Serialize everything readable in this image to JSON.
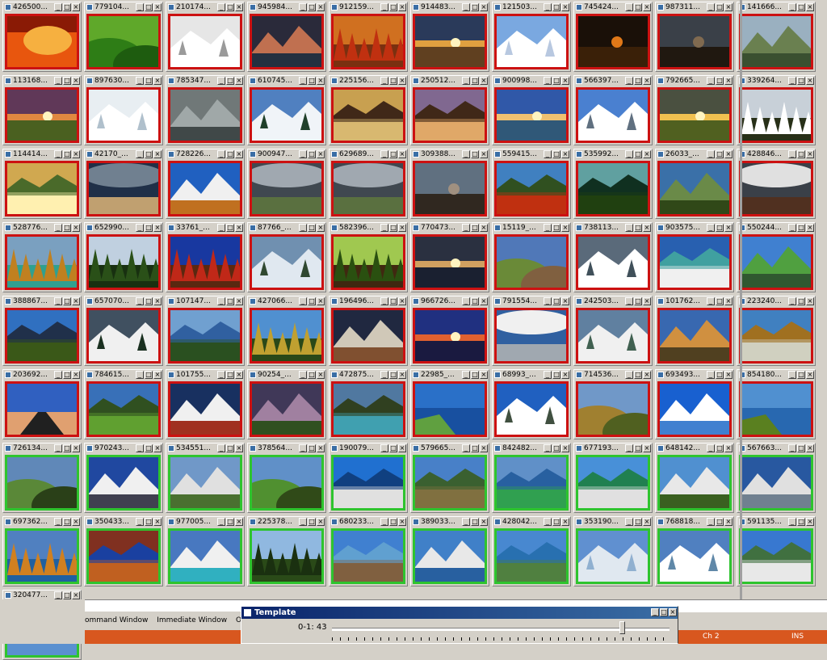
{
  "thumbnails": [
    {
      "title": "426500",
      "selected": false,
      "scene": "fire",
      "colors": [
        "#8a1a05",
        "#e8560e",
        "#f6b040"
      ]
    },
    {
      "title": "779104",
      "selected": false,
      "scene": "hills",
      "colors": [
        "#5fa82a",
        "#2e7d16",
        "#1e5c0f"
      ]
    },
    {
      "title": "210174",
      "selected": false,
      "scene": "snow",
      "colors": [
        "#e6e6e6",
        "#ffffff",
        "#9a9a9a"
      ]
    },
    {
      "title": "945984",
      "selected": false,
      "scene": "mountain",
      "colors": [
        "#2a2a3a",
        "#c07050",
        "#243040"
      ]
    },
    {
      "title": "912159",
      "selected": false,
      "scene": "forest",
      "colors": [
        "#d07020",
        "#c03010",
        "#7a3010"
      ]
    },
    {
      "title": "914483",
      "selected": false,
      "scene": "sunset",
      "colors": [
        "#2a3a5a",
        "#e0a040",
        "#604020"
      ]
    },
    {
      "title": "121503",
      "selected": false,
      "scene": "snow",
      "colors": [
        "#7aa8e0",
        "#ffffff",
        "#b8c8e0"
      ]
    },
    {
      "title": "745424",
      "selected": false,
      "scene": "dark",
      "colors": [
        "#1a1008",
        "#e07818",
        "#3a2008"
      ]
    },
    {
      "title": "987311",
      "selected": false,
      "scene": "dark",
      "colors": [
        "#3a4048",
        "#806a50",
        "#201810"
      ]
    },
    {
      "title": "141666",
      "selected": false,
      "scene": "mountain",
      "colors": [
        "#9ab0c0",
        "#6a8050",
        "#3a5030"
      ]
    },
    {
      "title": "113168",
      "selected": false,
      "scene": "sunset",
      "colors": [
        "#603858",
        "#e08840",
        "#4a6020"
      ]
    },
    {
      "title": "897630",
      "selected": false,
      "scene": "snow",
      "colors": [
        "#e8eef2",
        "#ffffff",
        "#b0c0cc"
      ]
    },
    {
      "title": "785347",
      "selected": false,
      "scene": "mountain",
      "colors": [
        "#707878",
        "#a0a8a8",
        "#404848"
      ]
    },
    {
      "title": "610745",
      "selected": false,
      "scene": "snow",
      "colors": [
        "#5080c0",
        "#f0f4f8",
        "#20402a"
      ]
    },
    {
      "title": "225156",
      "selected": false,
      "scene": "lake",
      "colors": [
        "#c8a050",
        "#d8b870",
        "#402818"
      ]
    },
    {
      "title": "250512",
      "selected": false,
      "scene": "lake",
      "colors": [
        "#806890",
        "#e0a868",
        "#402818"
      ]
    },
    {
      "title": "900998",
      "selected": false,
      "scene": "sunset",
      "colors": [
        "#3058a8",
        "#f0c070",
        "#305878"
      ]
    },
    {
      "title": "566397",
      "selected": false,
      "scene": "snow",
      "colors": [
        "#4a80d0",
        "#ffffff",
        "#607080"
      ]
    },
    {
      "title": "792665",
      "selected": false,
      "scene": "sunset",
      "colors": [
        "#4a5040",
        "#f0c050",
        "#506020"
      ]
    },
    {
      "title": "339264",
      "selected": false,
      "scene": "forest",
      "colors": [
        "#c8d0d8",
        "#ffffff",
        "#283018"
      ]
    },
    {
      "title": "114414",
      "selected": false,
      "scene": "lake",
      "colors": [
        "#d0a850",
        "#fff0b0",
        "#4a6a2a"
      ]
    },
    {
      "title": "42170_",
      "selected": false,
      "scene": "storm",
      "colors": [
        "#203048",
        "#708090",
        "#c0a070"
      ]
    },
    {
      "title": "728226",
      "selected": false,
      "scene": "mountain",
      "colors": [
        "#2060c0",
        "#f0f0f0",
        "#c07020"
      ]
    },
    {
      "title": "900947",
      "selected": false,
      "scene": "storm",
      "colors": [
        "#404850",
        "#a0a8b0",
        "#5a7040"
      ]
    },
    {
      "title": "629689",
      "selected": false,
      "scene": "storm",
      "colors": [
        "#404850",
        "#a0a8b0",
        "#5a7040"
      ]
    },
    {
      "title": "309388",
      "selected": false,
      "scene": "dark",
      "colors": [
        "#607080",
        "#a09080",
        "#302820"
      ]
    },
    {
      "title": "559415",
      "selected": false,
      "scene": "lake",
      "colors": [
        "#4080c0",
        "#c03010",
        "#305020"
      ]
    },
    {
      "title": "535992",
      "selected": false,
      "scene": "lake",
      "colors": [
        "#60a0a0",
        "#204010",
        "#103020"
      ]
    },
    {
      "title": "26033_",
      "selected": false,
      "scene": "mountain",
      "colors": [
        "#3a70a8",
        "#6a8a48",
        "#304818"
      ]
    },
    {
      "title": "428846",
      "selected": false,
      "scene": "storm",
      "colors": [
        "#3a4048",
        "#e0e0e0",
        "#503020"
      ]
    },
    {
      "title": "528776",
      "selected": false,
      "scene": "forest",
      "colors": [
        "#7aa0c0",
        "#c08020",
        "#30a090"
      ]
    },
    {
      "title": "652990",
      "selected": false,
      "scene": "forest",
      "colors": [
        "#c0d0e0",
        "#2a5018",
        "#183010"
      ]
    },
    {
      "title": "33761_",
      "selected": false,
      "scene": "forest",
      "colors": [
        "#1838a0",
        "#c02818",
        "#5a2810"
      ]
    },
    {
      "title": "87766_",
      "selected": false,
      "scene": "snow",
      "colors": [
        "#7090b0",
        "#e0e8f0",
        "#304830"
      ]
    },
    {
      "title": "582396",
      "selected": false,
      "scene": "forest",
      "colors": [
        "#a0c850",
        "#2a5010",
        "#402810"
      ]
    },
    {
      "title": "770473",
      "selected": false,
      "scene": "sunset",
      "colors": [
        "#2a3040",
        "#d0a060",
        "#1a2030"
      ]
    },
    {
      "title": "15119_",
      "selected": false,
      "scene": "hills",
      "colors": [
        "#5078b8",
        "#6a8a38",
        "#806040"
      ]
    },
    {
      "title": "738113",
      "selected": false,
      "scene": "snow",
      "colors": [
        "#5a6a7a",
        "#ffffff",
        "#40505a"
      ]
    },
    {
      "title": "903575",
      "selected": false,
      "scene": "lake",
      "colors": [
        "#2860b0",
        "#f0f0f0",
        "#40a0a0"
      ]
    },
    {
      "title": "550244",
      "selected": false,
      "scene": "mountain",
      "colors": [
        "#4080d0",
        "#50a040",
        "#305830"
      ]
    },
    {
      "title": "388867",
      "selected": false,
      "scene": "lake",
      "colors": [
        "#3070c0",
        "#3a5818",
        "#20304a"
      ]
    },
    {
      "title": "657070",
      "selected": false,
      "scene": "snow",
      "colors": [
        "#405060",
        "#f0f0f0",
        "#1a3020"
      ]
    },
    {
      "title": "107147",
      "selected": false,
      "scene": "lake",
      "colors": [
        "#70a0d0",
        "#2a5020",
        "#3060a0"
      ]
    },
    {
      "title": "427066",
      "selected": false,
      "scene": "forest",
      "colors": [
        "#5090d0",
        "#c0a030",
        "#2a4818"
      ]
    },
    {
      "title": "196496",
      "selected": false,
      "scene": "mountain",
      "colors": [
        "#202840",
        "#d0c8b8",
        "#805030"
      ]
    },
    {
      "title": "966726",
      "selected": false,
      "scene": "sunset",
      "colors": [
        "#203080",
        "#e06030",
        "#1a1a40"
      ]
    },
    {
      "title": "791554",
      "selected": false,
      "scene": "storm",
      "colors": [
        "#3060a0",
        "#f0f0f0",
        "#a0a8b0"
      ]
    },
    {
      "title": "242503",
      "selected": false,
      "scene": "snow",
      "colors": [
        "#6080a0",
        "#f0f0f0",
        "#406050"
      ]
    },
    {
      "title": "101762",
      "selected": false,
      "scene": "mountain",
      "colors": [
        "#3868b0",
        "#d09040",
        "#504020"
      ]
    },
    {
      "title": "223240",
      "selected": false,
      "scene": "lake",
      "colors": [
        "#4080c0",
        "#d0d0c0",
        "#a07020"
      ]
    },
    {
      "title": "203692",
      "selected": false,
      "scene": "road",
      "colors": [
        "#3060c0",
        "#e0a070",
        "#202020"
      ]
    },
    {
      "title": "784615",
      "selected": false,
      "scene": "lake",
      "colors": [
        "#3870b8",
        "#60a030",
        "#305020"
      ]
    },
    {
      "title": "101755",
      "selected": false,
      "scene": "mountain",
      "colors": [
        "#183060",
        "#f0f0f0",
        "#a03020"
      ]
    },
    {
      "title": "90254_",
      "selected": false,
      "scene": "mountain",
      "colors": [
        "#403858",
        "#a080a0",
        "#305020"
      ]
    },
    {
      "title": "472875",
      "selected": false,
      "scene": "lake",
      "colors": [
        "#5078a0",
        "#40a0b0",
        "#304020"
      ]
    },
    {
      "title": "22985_",
      "selected": false,
      "scene": "sea",
      "colors": [
        "#2a70c8",
        "#1850a0",
        "#60a040"
      ]
    },
    {
      "title": "68993_",
      "selected": false,
      "scene": "snow",
      "colors": [
        "#2060c0",
        "#ffffff",
        "#405040"
      ]
    },
    {
      "title": "714536",
      "selected": false,
      "scene": "hills",
      "colors": [
        "#7098c8",
        "#a08030",
        "#506020"
      ]
    },
    {
      "title": "693493",
      "selected": false,
      "scene": "mountain",
      "colors": [
        "#1860d0",
        "#ffffff",
        "#4080d0"
      ]
    },
    {
      "title": "854180",
      "selected": false,
      "scene": "sea",
      "colors": [
        "#5090d0",
        "#2868b0",
        "#5a8020"
      ]
    },
    {
      "title": "726134",
      "selected": true,
      "scene": "hills",
      "colors": [
        "#6088b8",
        "#5a8838",
        "#2a4018"
      ]
    },
    {
      "title": "970243",
      "selected": true,
      "scene": "mountain",
      "colors": [
        "#2048a0",
        "#f0f0f0",
        "#404050"
      ]
    },
    {
      "title": "534551",
      "selected": true,
      "scene": "mountain",
      "colors": [
        "#7098c8",
        "#e0e0e0",
        "#4a7030"
      ]
    },
    {
      "title": "378564",
      "selected": true,
      "scene": "hills",
      "colors": [
        "#6090c8",
        "#509030",
        "#304a18"
      ]
    },
    {
      "title": "190079",
      "selected": true,
      "scene": "lake",
      "colors": [
        "#2070d0",
        "#e0e0e0",
        "#104080"
      ]
    },
    {
      "title": "579665",
      "selected": true,
      "scene": "lake",
      "colors": [
        "#4880c8",
        "#807040",
        "#3a6030"
      ]
    },
    {
      "title": "842482",
      "selected": true,
      "scene": "lake",
      "colors": [
        "#6090c8",
        "#30a050",
        "#2860a0"
      ]
    },
    {
      "title": "677193",
      "selected": true,
      "scene": "lake",
      "colors": [
        "#4890d8",
        "#e0e0e0",
        "#208050"
      ]
    },
    {
      "title": "648142",
      "selected": true,
      "scene": "mountain",
      "colors": [
        "#5090d0",
        "#e8e8e8",
        "#3a6020"
      ]
    },
    {
      "title": "567663",
      "selected": true,
      "scene": "mountain",
      "colors": [
        "#2858a0",
        "#e0e0e0",
        "#708090"
      ]
    },
    {
      "title": "697362",
      "selected": true,
      "scene": "forest",
      "colors": [
        "#5080c0",
        "#d08020",
        "#2060a0"
      ]
    },
    {
      "title": "350433",
      "selected": true,
      "scene": "lake",
      "colors": [
        "#803020",
        "#c06020",
        "#1a40a0"
      ]
    },
    {
      "title": "977005",
      "selected": true,
      "scene": "mountain",
      "colors": [
        "#4878c0",
        "#f0f0f0",
        "#30b0c0"
      ]
    },
    {
      "title": "225378",
      "selected": true,
      "scene": "forest",
      "colors": [
        "#90b8e0",
        "#1a3010",
        "#2a4a18"
      ]
    },
    {
      "title": "680233",
      "selected": true,
      "scene": "lake",
      "colors": [
        "#4080d0",
        "#806040",
        "#60a0d0"
      ]
    },
    {
      "title": "389033",
      "selected": true,
      "scene": "mountain",
      "colors": [
        "#4080c8",
        "#e8e8e8",
        "#2860a0"
      ]
    },
    {
      "title": "428042",
      "selected": true,
      "scene": "lake",
      "colors": [
        "#4888d0",
        "#508040",
        "#2870b0"
      ]
    },
    {
      "title": "353190",
      "selected": true,
      "scene": "snow",
      "colors": [
        "#6090d0",
        "#e0e8f0",
        "#90b0d0"
      ]
    },
    {
      "title": "768818",
      "selected": true,
      "scene": "snow",
      "colors": [
        "#5080c0",
        "#ffffff",
        "#6088a8"
      ]
    },
    {
      "title": "591135",
      "selected": true,
      "scene": "lake",
      "colors": [
        "#3878d0",
        "#e8e8e8",
        "#407040"
      ]
    },
    {
      "title": "320477",
      "selected": true,
      "scene": "mountain",
      "colors": [
        "#3070c8",
        "#ffffff",
        "#5a90d0"
      ]
    }
  ],
  "ide": {
    "tabs": [
      "ommand Window",
      "Immediate Window",
      "Output"
    ],
    "status_channel": "Ch 2",
    "status_mode": "INS"
  },
  "template_dialog": {
    "title": "Template",
    "slider_label": "0-1: 43",
    "slider_value": 43,
    "slider_min": 0,
    "slider_max": 50
  },
  "window_buttons": {
    "minimize": "_",
    "maximize": "□",
    "close": "×"
  }
}
